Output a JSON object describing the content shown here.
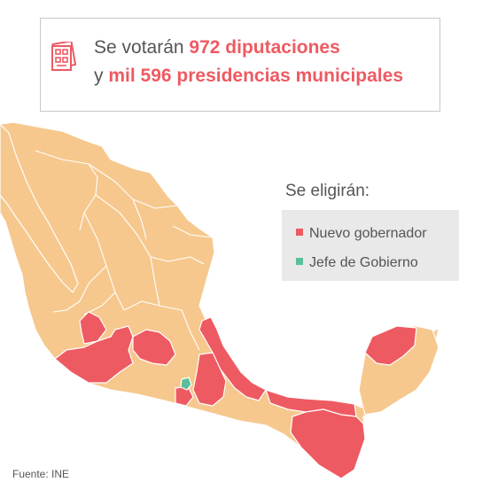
{
  "headline": {
    "line1_prefix": "Se votarán ",
    "line1_strong": "972 diputaciones",
    "line2_prefix": "y ",
    "line2_strong": "mil 596 presidencias municipales",
    "icon": "ballot-icon"
  },
  "legend": {
    "title": "Se eligirán:",
    "items": [
      {
        "label": "Nuevo gobernador",
        "color": "#ee5a62"
      },
      {
        "label": "Jefe de Gobierno",
        "color": "#5bbf9a"
      }
    ]
  },
  "map": {
    "base_color": "#f6c88d",
    "governor_color": "#ee5a62",
    "capital_color": "#5bbf9a",
    "governor_states": [
      "Jalisco",
      "Guanajuato",
      "Veracruz",
      "Puebla",
      "Morelos",
      "Tabasco",
      "Chiapas",
      "Yucatán"
    ],
    "capital": "Ciudad de México"
  },
  "source": "Fuente: INE"
}
